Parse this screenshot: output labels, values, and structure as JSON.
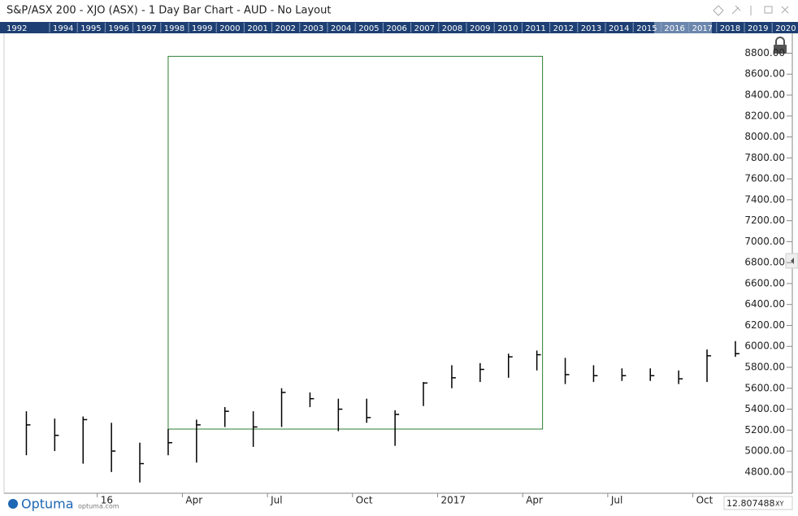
{
  "header": {
    "title": "S&P/ASX 200 - XJO (ASX) - 1 Day Bar Chart - AUD - No Layout"
  },
  "timeline_years": [
    "1992",
    "1994",
    "1995",
    "1996",
    "1997",
    "1998",
    "1999",
    "2000",
    "2001",
    "2002",
    "2003",
    "2004",
    "2005",
    "2006",
    "2007",
    "2008",
    "2009",
    "2010",
    "2011",
    "2012",
    "2013",
    "2014",
    "2015",
    "2016",
    "2017",
    "2018",
    "2019",
    "2020"
  ],
  "chart_data": {
    "type": "ohlc",
    "color": "#000000",
    "categories": [
      null,
      null,
      null,
      "16",
      null,
      null,
      "Apr",
      null,
      null,
      "Jul",
      null,
      null,
      "Oct",
      null,
      null,
      "2017",
      null,
      null,
      "Apr",
      null,
      null,
      "Jul",
      null,
      null,
      "Oct",
      null
    ],
    "high": [
      5380,
      5310,
      5330,
      5270,
      5080,
      5210,
      5300,
      5420,
      5380,
      5600,
      5560,
      5500,
      5500,
      5390,
      5660,
      5820,
      5840,
      5930,
      5960,
      5890,
      5820,
      5790,
      5790,
      5770,
      5970,
      6050
    ],
    "low": [
      4960,
      5000,
      4880,
      4800,
      4700,
      4960,
      4890,
      5230,
      5040,
      5230,
      5420,
      5190,
      5270,
      5050,
      5430,
      5600,
      5660,
      5700,
      5770,
      5640,
      5660,
      5670,
      5670,
      5640,
      5660,
      5900
    ],
    "close": [
      5250,
      5150,
      5300,
      5000,
      4880,
      5080,
      5250,
      5380,
      5230,
      5560,
      5500,
      5400,
      5320,
      5350,
      5650,
      5700,
      5780,
      5900,
      5920,
      5730,
      5720,
      5720,
      5720,
      5690,
      5910,
      5930
    ],
    "box": {
      "low": 5210,
      "high": 8770,
      "color": "#2e7d32"
    },
    "ylim": [
      4597,
      8990
    ],
    "yticks": [
      {
        "value": 4800,
        "label": "4800.00"
      },
      {
        "value": 5000,
        "label": "5000.00"
      },
      {
        "value": 5200,
        "label": "5200.00"
      },
      {
        "value": 5400,
        "label": "5400.00"
      },
      {
        "value": 5600,
        "label": "5600.00"
      },
      {
        "value": 5800,
        "label": "5800.00"
      },
      {
        "value": 6000,
        "label": "6000.00"
      },
      {
        "value": 6200,
        "label": "6200.00"
      },
      {
        "value": 6400,
        "label": "6400.00"
      },
      {
        "value": 6600,
        "label": "6600.00"
      },
      {
        "value": 6800,
        "label": "6800.00"
      },
      {
        "value": 7000,
        "label": "7000.00"
      },
      {
        "value": 7200,
        "label": "7200.00"
      },
      {
        "value": 7400,
        "label": "7400.00"
      },
      {
        "value": 7600,
        "label": "7600.00"
      },
      {
        "value": 7800,
        "label": "7800.00"
      },
      {
        "value": 8000,
        "label": "8000.00"
      },
      {
        "value": 8200,
        "label": "8200.00"
      },
      {
        "value": 8400,
        "label": "8400.00"
      },
      {
        "value": 8600,
        "label": "8600.00"
      },
      {
        "value": 8800,
        "label": "8800.00"
      }
    ]
  },
  "footer": {
    "brand": "Optuma",
    "site": "optuma.com",
    "scale": "12.807488",
    "mode": "XY"
  }
}
